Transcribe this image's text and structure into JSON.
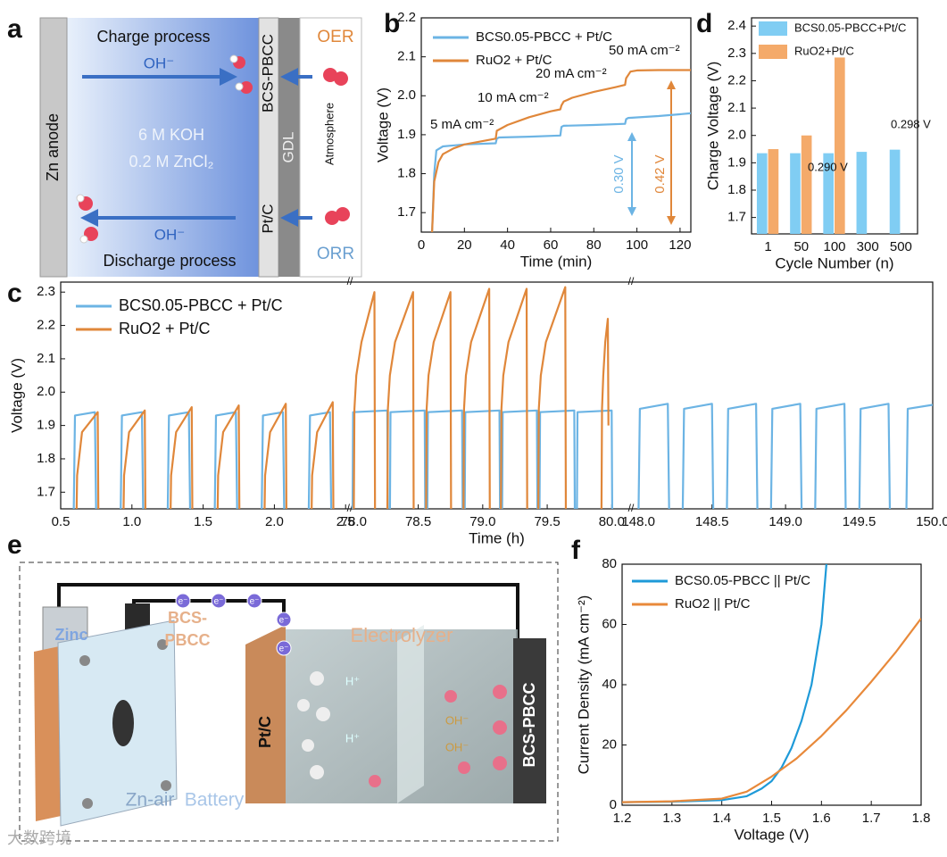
{
  "panel_labels": [
    "a",
    "b",
    "c",
    "d",
    "e",
    "f"
  ],
  "panel_a": {
    "zn_anode": "Zn anode",
    "charge": "Charge process",
    "oh_top": "OH⁻",
    "koh": "6 M KOH",
    "zncl": "0.2 M ZnCl₂",
    "bcs": "BCS-PBCC",
    "gdl": "GDL",
    "oer": "OER",
    "atmosphere": "Atmosphere",
    "ptc": "Pt/C",
    "orr": "ORR",
    "oh_bottom": "OH⁻",
    "discharge": "Discharge process"
  },
  "panel_e": {
    "zinc": "Zinc",
    "bcs_lines": [
      "BCS-",
      "PBCC"
    ],
    "electrolyzer": "Electrolyzer",
    "ptc": "Pt/C",
    "bcs": "BCS-PBCC",
    "battery": [
      "Zn-air",
      "Battery"
    ],
    "h": "H⁺",
    "oh": "OH⁻",
    "e": "e⁻"
  },
  "watermark": "大数跨境",
  "chart_data": [
    {
      "type": "line",
      "xlabel": "Time (min)",
      "ylabel": "Voltage (V)",
      "xlim": [
        0,
        125
      ],
      "xticks": [
        0,
        20,
        40,
        60,
        80,
        100,
        120
      ],
      "ylim": [
        1.65,
        2.2
      ],
      "yticks": [
        1.7,
        1.8,
        1.9,
        {
          "value": 2,
          "label": "2.0"
        },
        2.1,
        2.2
      ],
      "series": [
        {
          "name": "BCS0.05-PBCC + Pt/C",
          "color": "#6cb4e4",
          "x": [
            5,
            6,
            7,
            10,
            20,
            34.5,
            35,
            36,
            50,
            64.5,
            65,
            66,
            80,
            94.5,
            95,
            96,
            110,
            125
          ],
          "values": [
            1.65,
            1.8,
            1.86,
            1.87,
            1.875,
            1.878,
            1.89,
            1.893,
            1.895,
            1.898,
            1.92,
            1.923,
            1.925,
            1.928,
            1.94,
            1.943,
            1.948,
            1.955
          ]
        },
        {
          "name": "RuO2 + Pt/C",
          "color": "#e0873a",
          "x": [
            5,
            6,
            8,
            10,
            15,
            20,
            34.5,
            35,
            40,
            50,
            60,
            64.5,
            65,
            66,
            70,
            80,
            90,
            94.5,
            95,
            97,
            100,
            110,
            125
          ],
          "values": [
            1.65,
            1.78,
            1.83,
            1.85,
            1.865,
            1.875,
            1.89,
            1.91,
            1.925,
            1.945,
            1.96,
            1.965,
            1.975,
            1.985,
            1.995,
            2.01,
            2.022,
            2.028,
            2.045,
            2.062,
            2.065,
            2.066,
            2.066
          ]
        }
      ],
      "annotations": [
        {
          "text": "5 mA cm⁻²",
          "color": "#111"
        },
        {
          "text": "10 mA cm⁻²",
          "color": "#111"
        },
        {
          "text": "20 mA cm⁻²",
          "color": "#111"
        },
        {
          "text": "50 mA cm⁻²",
          "color": "#111"
        },
        {
          "text": "0.30 V",
          "color": "#6cb4e4"
        },
        {
          "text": "0.42 V",
          "color": "#e0873a"
        }
      ]
    },
    {
      "type": "line",
      "xlabel": "Time (h)",
      "ylabel": "Voltage (V)",
      "ylim": [
        1.65,
        2.33
      ],
      "yticks": [
        1.7,
        1.8,
        1.9,
        {
          "value": 2,
          "label": "2.0"
        },
        2.1,
        2.2,
        2.3
      ],
      "x_segments": [
        {
          "xlim": [
            0.5,
            2.53
          ],
          "xticks": [
            0.5,
            {
              "value": 1,
              "label": "1.0"
            },
            1.5,
            {
              "value": 2,
              "label": "2.0"
            },
            2.5
          ]
        },
        {
          "xlim": [
            77.97,
            80.15
          ],
          "xticks": [
            {
              "value": 78,
              "label": "78.0"
            },
            78.5,
            {
              "value": 79,
              "label": "79.0"
            },
            79.5,
            {
              "value": 80,
              "label": "80.0"
            }
          ]
        },
        {
          "xlim": [
            147.95,
            150
          ],
          "xticks": [
            {
              "value": 148,
              "label": "148.0"
            },
            148.5,
            {
              "value": 149,
              "label": "149.0"
            },
            149.5,
            {
              "value": 150,
              "label": "150.0"
            }
          ]
        }
      ],
      "legend": "upper left",
      "series": [
        {
          "name": "BCS0.05-PBCC + Pt/C",
          "color": "#6cb4e4",
          "x": [
            0.59,
            0.6,
            0.74,
            0.75,
            0.92,
            0.93,
            1.07,
            1.08,
            1.25,
            1.26,
            1.4,
            1.41,
            1.58,
            1.59,
            1.73,
            1.74,
            1.91,
            1.92,
            2.06,
            2.07,
            2.24,
            2.25,
            2.39,
            2.4,
            null,
            77.99,
            77.995,
            78.26,
            78.265,
            78.28,
            78.285,
            78.55,
            78.555,
            78.57,
            78.575,
            78.84,
            78.845,
            78.86,
            78.865,
            79.13,
            79.135,
            79.15,
            79.155,
            79.42,
            79.425,
            79.44,
            79.445,
            79.71,
            79.715,
            79.73,
            79.735,
            80.0,
            80.005,
            null,
            148.0,
            148.01,
            148.2,
            148.21,
            148.3,
            148.31,
            148.5,
            148.51,
            148.6,
            148.61,
            148.8,
            148.81,
            148.9,
            148.91,
            149.1,
            149.11,
            149.2,
            149.21,
            149.4,
            149.41,
            149.5,
            149.51,
            149.7,
            149.71,
            149.82,
            149.83,
            150.0
          ],
          "values": [
            1.6,
            1.93,
            1.94,
            1.6,
            1.6,
            1.93,
            1.94,
            1.6,
            1.6,
            1.93,
            1.94,
            1.6,
            1.6,
            1.93,
            1.94,
            1.6,
            1.6,
            1.93,
            1.94,
            1.6,
            1.6,
            1.93,
            1.94,
            1.6,
            null,
            1.6,
            1.94,
            1.945,
            1.6,
            1.6,
            1.94,
            1.945,
            1.6,
            1.6,
            1.94,
            1.945,
            1.6,
            1.6,
            1.94,
            1.945,
            1.6,
            1.6,
            1.94,
            1.945,
            1.6,
            1.6,
            1.94,
            1.945,
            1.6,
            1.6,
            1.94,
            1.945,
            1.6,
            null,
            1.6,
            1.95,
            1.965,
            1.6,
            1.6,
            1.95,
            1.965,
            1.6,
            1.6,
            1.95,
            1.965,
            1.6,
            1.6,
            1.95,
            1.965,
            1.6,
            1.6,
            1.95,
            1.965,
            1.6,
            1.6,
            1.95,
            1.965,
            1.6,
            1.6,
            1.95,
            1.962
          ]
        },
        {
          "name": "RuO2 + Pt/C",
          "color": "#e0873a",
          "x": [
            0.61,
            0.615,
            0.65,
            0.76,
            0.765,
            0.94,
            0.945,
            0.98,
            1.09,
            1.095,
            1.27,
            1.275,
            1.31,
            1.42,
            1.425,
            1.6,
            1.605,
            1.64,
            1.75,
            1.755,
            1.93,
            1.935,
            1.97,
            2.08,
            2.085,
            2.26,
            2.265,
            2.3,
            2.41,
            2.415,
            null,
            78.0,
            78.005,
            78.02,
            78.06,
            78.16,
            78.165,
            78.26,
            78.265,
            78.28,
            78.32,
            78.46,
            78.465,
            78.56,
            78.565,
            78.58,
            78.62,
            78.75,
            78.755,
            78.85,
            78.855,
            78.87,
            78.91,
            79.05,
            79.055,
            79.14,
            79.145,
            79.16,
            79.2,
            79.34,
            79.345,
            79.43,
            79.435,
            79.45,
            79.49,
            79.64,
            79.645,
            79.92,
            79.925,
            79.935,
            79.95,
            79.97,
            79.975
          ],
          "values": [
            1.6,
            1.75,
            1.88,
            1.94,
            1.6,
            1.6,
            1.75,
            1.88,
            1.945,
            1.6,
            1.6,
            1.75,
            1.88,
            1.955,
            1.6,
            1.6,
            1.75,
            1.88,
            1.96,
            1.6,
            1.6,
            1.75,
            1.88,
            1.965,
            1.6,
            1.6,
            1.75,
            1.88,
            1.97,
            1.6,
            null,
            1.6,
            1.95,
            2.05,
            2.15,
            2.3,
            1.6,
            1.6,
            1.95,
            2.05,
            2.15,
            2.3,
            1.6,
            1.6,
            1.95,
            2.05,
            2.15,
            2.3,
            1.6,
            1.6,
            1.95,
            2.05,
            2.15,
            2.31,
            1.6,
            1.6,
            1.95,
            2.05,
            2.15,
            2.31,
            1.6,
            1.6,
            1.95,
            2.05,
            2.15,
            2.315,
            1.6,
            1.6,
            1.95,
            2.05,
            2.15,
            2.22,
            1.9
          ]
        }
      ]
    },
    {
      "type": "bar",
      "xlabel": "Cycle Number (n)",
      "ylabel": "Charge Voltage (V)",
      "categories": [
        "1",
        "50",
        "100",
        "300",
        "500"
      ],
      "ylim": [
        1.64,
        2.43
      ],
      "yticks": [
        1.7,
        1.8,
        1.9,
        {
          "value": 2,
          "label": "2.0"
        },
        2.1,
        2.2,
        2.3,
        2.4
      ],
      "legend": "upper left",
      "series": [
        {
          "name": "BCS0.05-PBCC+Pt/C",
          "color": "#80cdf3",
          "values": [
            1.935,
            1.935,
            1.935,
            1.94,
            1.948
          ]
        },
        {
          "name": "RuO2+Pt/C",
          "color": "#f4aa6a",
          "values": [
            1.95,
            2.0,
            2.285,
            null,
            null
          ]
        }
      ],
      "annotations": [
        {
          "text": "0.290 V",
          "color": "#111"
        },
        {
          "text": "0.298 V",
          "color": "#111"
        }
      ]
    },
    {
      "type": "line",
      "xlabel": "Voltage (V)",
      "ylabel": "Current Density (mA cm⁻²)",
      "xlim": [
        1.2,
        1.8
      ],
      "xticks": [
        1.2,
        1.3,
        1.4,
        1.5,
        1.6,
        1.7,
        1.8
      ],
      "ylim": [
        0,
        80
      ],
      "yticks": [
        0,
        20,
        40,
        60,
        80
      ],
      "legend": "upper left",
      "series": [
        {
          "name": "BCS0.05-PBCC || Pt/C",
          "color": "#1e9ad8",
          "x": [
            1.2,
            1.3,
            1.4,
            1.45,
            1.48,
            1.5,
            1.52,
            1.54,
            1.56,
            1.58,
            1.6,
            1.61
          ],
          "values": [
            1,
            1.2,
            1.7,
            3,
            5.5,
            8,
            12.5,
            19,
            28,
            40,
            60,
            80
          ]
        },
        {
          "name": "RuO2 || Pt/C",
          "color": "#e8893a",
          "x": [
            1.2,
            1.3,
            1.4,
            1.45,
            1.5,
            1.55,
            1.6,
            1.65,
            1.7,
            1.75,
            1.8
          ],
          "values": [
            1,
            1.3,
            2.2,
            4.5,
            9.5,
            15.5,
            23,
            31.5,
            41,
            51,
            62
          ]
        }
      ]
    }
  ]
}
